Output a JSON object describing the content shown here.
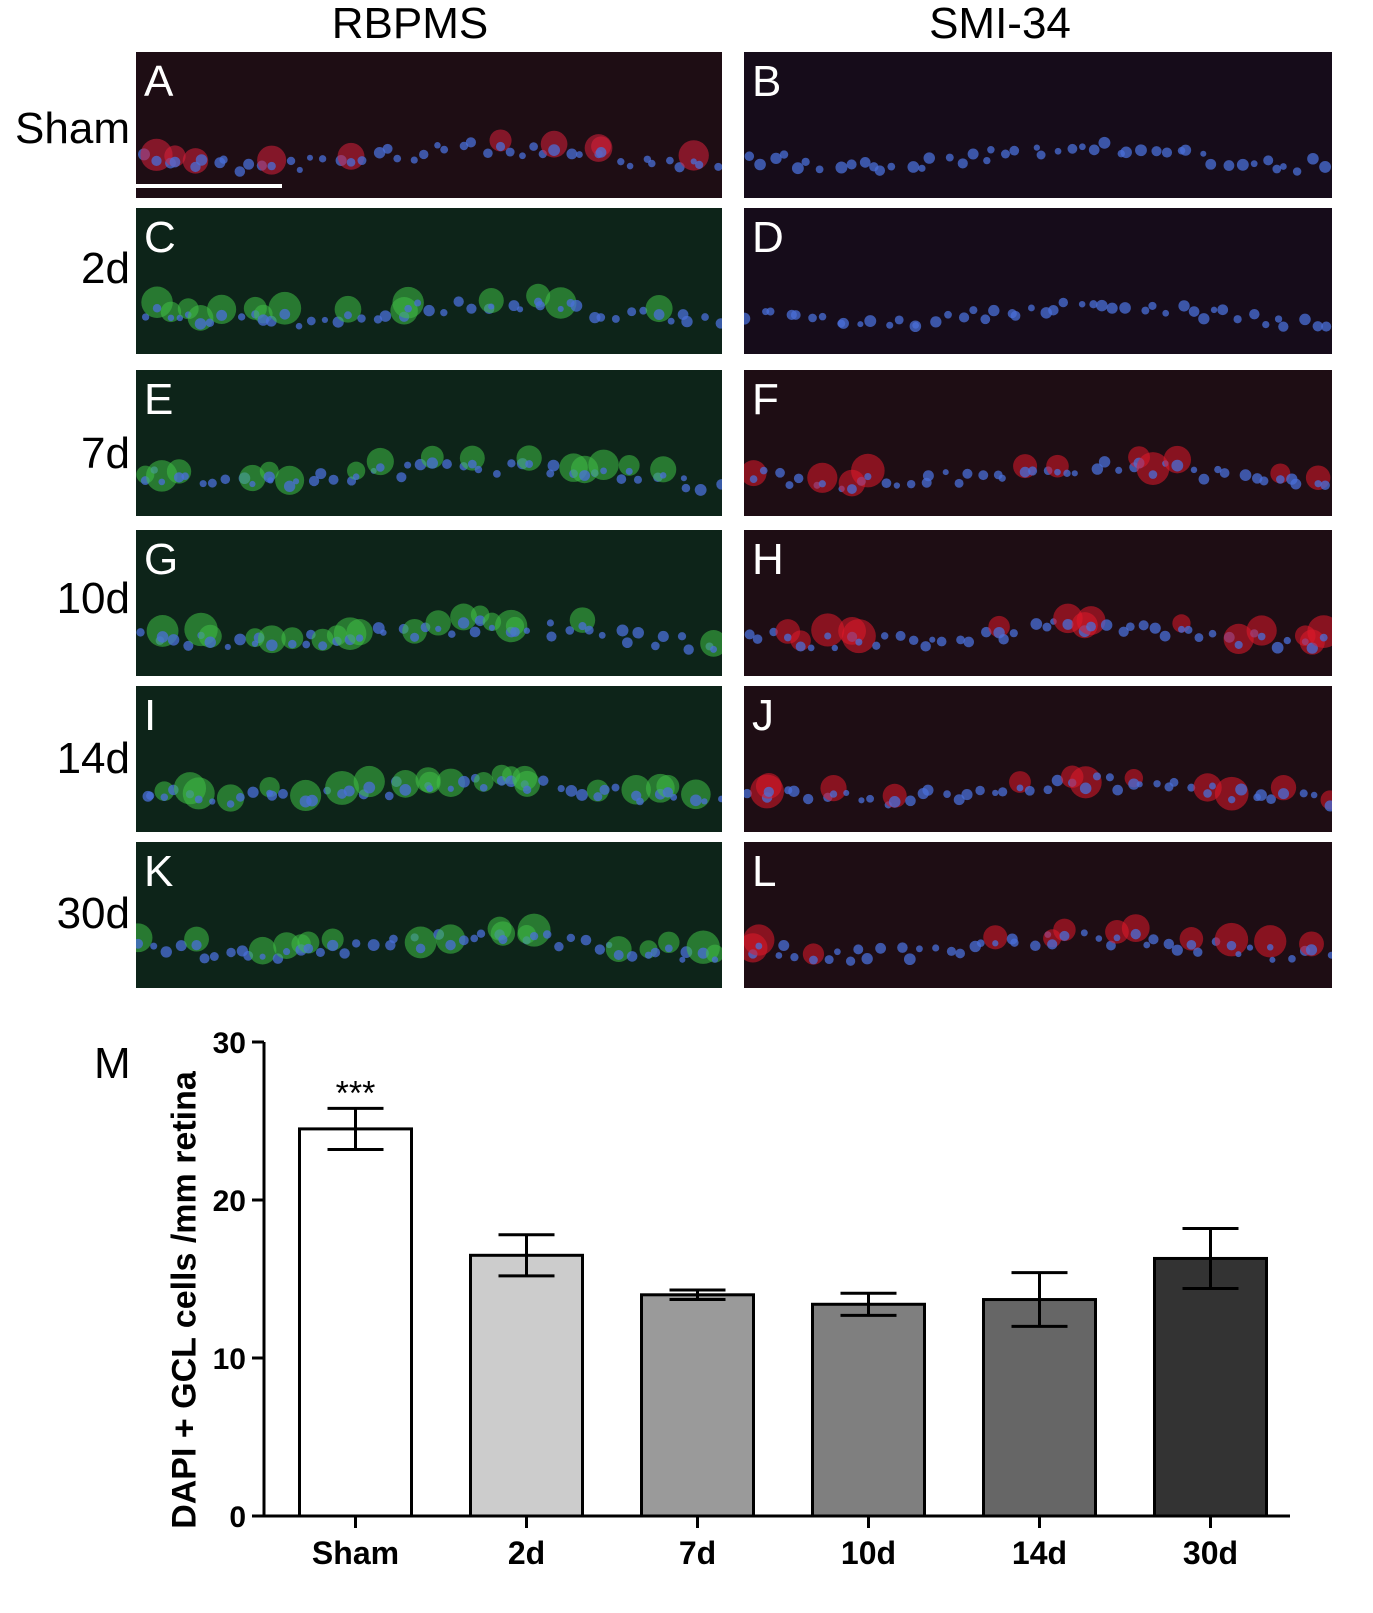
{
  "columns": {
    "left_title": "RBPMS",
    "right_title": "SMI-34"
  },
  "rows": [
    {
      "label": "Sham",
      "left": {
        "letter": "A",
        "channel": "red"
      },
      "right": {
        "letter": "B",
        "channel": "blue-only"
      }
    },
    {
      "label": "2d",
      "left": {
        "letter": "C",
        "channel": "green"
      },
      "right": {
        "letter": "D",
        "channel": "blue-only"
      }
    },
    {
      "label": "7d",
      "left": {
        "letter": "E",
        "channel": "green"
      },
      "right": {
        "letter": "F",
        "channel": "red"
      }
    },
    {
      "label": "10d",
      "left": {
        "letter": "G",
        "channel": "green"
      },
      "right": {
        "letter": "H",
        "channel": "red"
      }
    },
    {
      "label": "14d",
      "left": {
        "letter": "I",
        "channel": "green"
      },
      "right": {
        "letter": "J",
        "channel": "red"
      }
    },
    {
      "label": "30d",
      "left": {
        "letter": "K",
        "channel": "green"
      },
      "right": {
        "letter": "L",
        "channel": "red"
      }
    }
  ],
  "colors": {
    "dapi": "#4a6fd8",
    "rbpms_red": "#d8203a",
    "rbpms_green": "#3fbf46",
    "smi_red": "#e01a2a"
  },
  "chart_panel_letter": "M",
  "chart_data": {
    "type": "bar",
    "categories": [
      "Sham",
      "2d",
      "7d",
      "10d",
      "14d",
      "30d"
    ],
    "values": [
      24.5,
      16.5,
      14.0,
      13.4,
      13.7,
      16.3
    ],
    "errors": [
      1.3,
      1.3,
      0.3,
      0.7,
      1.7,
      1.9
    ],
    "bar_colors": [
      "#ffffff",
      "#cccccc",
      "#9a9a9a",
      "#7f7f7f",
      "#666666",
      "#333333"
    ],
    "annotation": {
      "category": "Sham",
      "text": "***"
    },
    "ylabel": "DAPI + GCL cells /mm retina",
    "ylim": [
      0,
      30
    ],
    "yticks": [
      0,
      10,
      20,
      30
    ]
  }
}
